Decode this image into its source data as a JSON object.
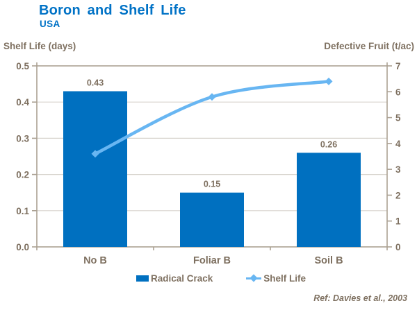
{
  "footer": {
    "ref": "Ref: Davies et al., 2003"
  },
  "colors": {
    "bar": "#0070C0",
    "line": "#68B6F2",
    "title": "#0072C6",
    "text": "#7E7060",
    "axis": "#ABA193",
    "grid": "#D8D4CE"
  },
  "chart_data": {
    "type": "combo (bar + line, dual axis)",
    "title": "Boron and Shelf Life",
    "subtitle": "USA",
    "categories": [
      "No B",
      "Foliar B",
      "Soil B"
    ],
    "series": [
      {
        "name": "Radical Crack",
        "type": "bar",
        "axis": "left",
        "values": [
          0.43,
          0.15,
          0.26
        ],
        "labels": [
          "0.43",
          "0.15",
          "0.26"
        ],
        "color": "#0070C0"
      },
      {
        "name": "Shelf Life",
        "type": "line",
        "axis": "right",
        "values": [
          3.6,
          5.8,
          6.4
        ],
        "marker": "diamond",
        "color": "#68B6F2"
      }
    ],
    "left_axis": {
      "label": "Shelf Life (days)",
      "min": 0,
      "max": 0.5,
      "step": 0.1,
      "tick_format": "0.0"
    },
    "right_axis": {
      "label": "Defective Fruit (t/ac)",
      "min": 0,
      "max": 7,
      "step": 1,
      "tick_format": "0"
    },
    "grid": true,
    "legend_position": "bottom"
  }
}
